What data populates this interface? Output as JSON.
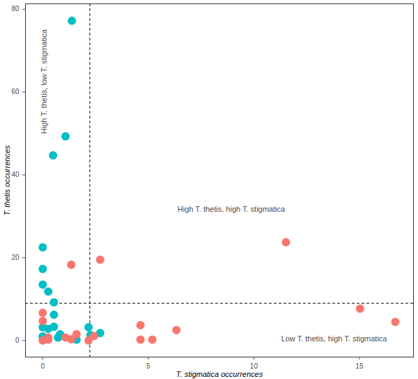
{
  "chart_data": {
    "type": "scatter",
    "x_label": "T. stigmatica occurrences",
    "y_label": "T. thetis occurrences",
    "series": [
      {
        "color": "#00BFC4",
        "x": [
          1.38,
          1.08,
          0.49,
          0,
          0,
          0,
          0.26,
          0.53,
          0.53,
          0.53,
          0,
          0.26,
          0,
          0,
          0.82,
          0.72,
          1.6,
          2.17,
          2.26,
          2.72
        ],
        "values": [
          77.2,
          49.3,
          44.7,
          22.5,
          17.3,
          13.5,
          11.8,
          9.2,
          6.2,
          3.3,
          3.2,
          2.8,
          1.0,
          0.7,
          1.5,
          0.7,
          0.2,
          3.2,
          1.3,
          1.8
        ]
      },
      {
        "color": "#F8766D",
        "x": [
          0,
          0,
          0,
          0.26,
          0.26,
          1.35,
          2.72,
          1.08,
          1.35,
          1.6,
          2.17,
          2.43,
          4.63,
          4.63,
          5.19,
          6.33,
          11.52,
          15.03,
          16.7
        ],
        "values": [
          6.7,
          4.7,
          0,
          0.7,
          0.2,
          18.3,
          19.5,
          0.7,
          0.3,
          1.5,
          0,
          1.1,
          3.7,
          0.2,
          0.2,
          2.5,
          23.7,
          7.7,
          4.5
        ]
      }
    ],
    "xlim": [
      -0.82,
      17.56
    ],
    "xticks": [
      0,
      5,
      10,
      15
    ],
    "ylim": [
      -4,
      81.3
    ],
    "yticks": [
      0,
      20,
      40,
      60,
      80
    ],
    "grid": false,
    "vlines": [
      2.23
    ],
    "hlines": [
      9.0
    ],
    "annotations": [
      {
        "text": "High T. thetis, low T. stigmatica",
        "x": 0.07,
        "y": 62.5
      },
      {
        "text": "High T. thetis, high T. stigmatica",
        "x": 8.93,
        "y": 31.7
      },
      {
        "text": "Low T. thetis, high T. stigmatica",
        "x": 13.8,
        "y": 0.3
      }
    ]
  }
}
